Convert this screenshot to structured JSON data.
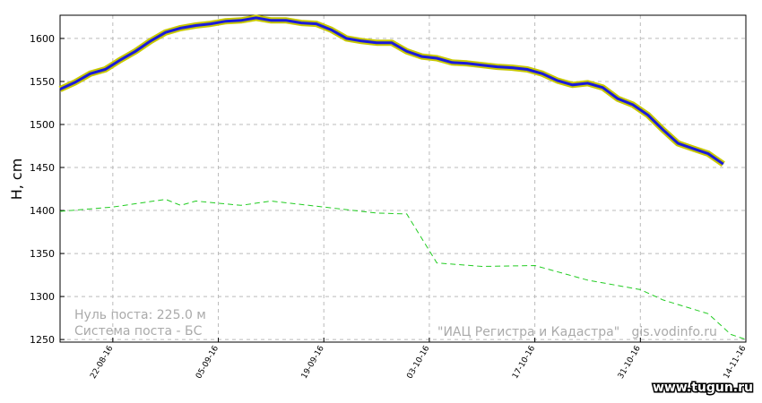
{
  "chart_data": {
    "type": "line",
    "y_label": "H, cm",
    "xlim": [
      "2016-08-15",
      "2016-11-14"
    ],
    "xticks": [
      {
        "value": "2016-08-22",
        "label": "22-08-16"
      },
      {
        "value": "2016-09-05",
        "label": "05-09-16"
      },
      {
        "value": "2016-09-19",
        "label": "19-09-16"
      },
      {
        "value": "2016-10-03",
        "label": "03-10-16"
      },
      {
        "value": "2016-10-17",
        "label": "17-10-16"
      },
      {
        "value": "2016-10-31",
        "label": "31-10-16"
      },
      {
        "value": "2016-11-14",
        "label": "14-11-16"
      }
    ],
    "ylim": [
      1247,
      1627
    ],
    "yticks": [
      1250,
      1300,
      1350,
      1400,
      1450,
      1500,
      1550,
      1600
    ],
    "grid": true,
    "series": [
      {
        "color": "#1a1adb",
        "outline": "#c8c800",
        "dashed": false,
        "x": [
          "2016-08-15",
          "2016-08-17",
          "2016-08-19",
          "2016-08-21",
          "2016-08-23",
          "2016-08-25",
          "2016-08-27",
          "2016-08-29",
          "2016-08-31",
          "2016-09-02",
          "2016-09-04",
          "2016-09-06",
          "2016-09-08",
          "2016-09-10",
          "2016-09-12",
          "2016-09-14",
          "2016-09-16",
          "2016-09-18",
          "2016-09-20",
          "2016-09-22",
          "2016-09-24",
          "2016-09-26",
          "2016-09-28",
          "2016-09-30",
          "2016-10-02",
          "2016-10-04",
          "2016-10-06",
          "2016-10-08",
          "2016-10-10",
          "2016-10-12",
          "2016-10-14",
          "2016-10-16",
          "2016-10-18",
          "2016-10-20",
          "2016-10-22",
          "2016-10-24",
          "2016-10-26",
          "2016-10-28",
          "2016-10-30",
          "2016-11-01",
          "2016-11-03",
          "2016-11-05",
          "2016-11-07",
          "2016-11-09",
          "2016-11-11"
        ],
        "values": [
          1541,
          1549,
          1559,
          1564,
          1575,
          1585,
          1597,
          1607,
          1612,
          1615,
          1617,
          1620,
          1621,
          1624,
          1621,
          1621,
          1618,
          1617,
          1610,
          1600,
          1597,
          1595,
          1595,
          1585,
          1579,
          1577,
          1572,
          1571,
          1569,
          1567,
          1566,
          1564,
          1559,
          1551,
          1546,
          1548,
          1543,
          1530,
          1523,
          1511,
          1494,
          1478,
          1472,
          1466,
          1454
        ]
      },
      {
        "color": "#22cc22",
        "dashed": true,
        "x": [
          "2016-08-15",
          "2016-08-22",
          "2016-08-29",
          "2016-08-31",
          "2016-09-02",
          "2016-09-08",
          "2016-09-12",
          "2016-09-19",
          "2016-09-26",
          "2016-09-30",
          "2016-10-04",
          "2016-10-10",
          "2016-10-17",
          "2016-10-24",
          "2016-10-31",
          "2016-11-03",
          "2016-11-09",
          "2016-11-12",
          "2016-11-14"
        ],
        "values": [
          1399,
          1404,
          1413,
          1406,
          1411,
          1406,
          1411,
          1404,
          1397,
          1396,
          1339,
          1335,
          1336,
          1319,
          1308,
          1296,
          1280,
          1256,
          1250
        ]
      }
    ],
    "annotations": [
      "Нуль поста: 225.0 м",
      "Система поста - БС",
      "\"ИАЦ Регистра и Кадастра\"   gis.vodinfo.ru",
      "www.tugun.ru"
    ]
  }
}
